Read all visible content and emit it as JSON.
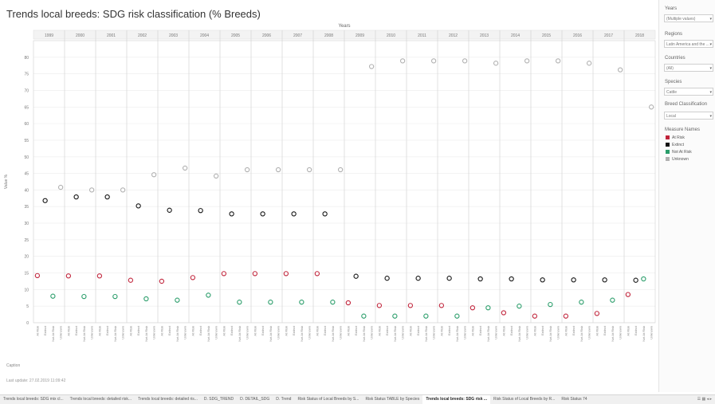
{
  "title": "Trends local breeds: SDG risk classification (% Breeds)",
  "chart_data": {
    "type": "scatter",
    "top_axis_label": "Years",
    "ylabel": "Value %",
    "ylim": [
      0,
      85
    ],
    "y_ticks": [
      0,
      5,
      10,
      15,
      20,
      25,
      30,
      35,
      40,
      45,
      50,
      55,
      60,
      65,
      70,
      75,
      80
    ],
    "grid": true,
    "years": [
      "1999",
      "2000",
      "2001",
      "2002",
      "2003",
      "2004",
      "2005",
      "2006",
      "2007",
      "2008",
      "2009",
      "2010",
      "2011",
      "2012",
      "2013",
      "2014",
      "2015",
      "2016",
      "2017",
      "2018"
    ],
    "status_categories": [
      "At Risk",
      "Extinct",
      "Not At Risk",
      "Unknown"
    ],
    "series": [
      {
        "name": "At Risk",
        "color": "#c0233a",
        "values": [
          14.2,
          14.1,
          14.1,
          12.8,
          12.5,
          13.6,
          14.8,
          14.8,
          14.8,
          14.8,
          6.0,
          5.2,
          5.2,
          5.2,
          4.5,
          3.0,
          2.0,
          2.0,
          2.8,
          8.5
        ]
      },
      {
        "name": "Extinct",
        "color": "#111111",
        "values": [
          36.8,
          37.9,
          37.9,
          35.2,
          33.9,
          33.8,
          32.8,
          32.8,
          32.8,
          32.8,
          14.0,
          13.4,
          13.4,
          13.4,
          13.2,
          13.2,
          12.9,
          12.9,
          12.9,
          12.8
        ]
      },
      {
        "name": "Not At Risk",
        "color": "#2a9d6a",
        "values": [
          8.0,
          7.9,
          7.9,
          7.2,
          6.8,
          8.3,
          6.2,
          6.2,
          6.2,
          6.2,
          2.0,
          2.0,
          2.0,
          2.0,
          4.5,
          5.0,
          5.5,
          6.2,
          6.8,
          13.2
        ]
      },
      {
        "name": "Unknown",
        "color": "#b0b0b0",
        "values": [
          40.8,
          40.0,
          40.0,
          44.6,
          46.6,
          44.2,
          46.1,
          46.1,
          46.1,
          46.1,
          77.2,
          78.9,
          78.9,
          78.9,
          78.2,
          78.9,
          78.9,
          78.2,
          76.2,
          65.0
        ]
      }
    ]
  },
  "sidebar": {
    "years_label": "Years",
    "years_value": "(Multiple values)",
    "regions_label": "Regions",
    "regions_value": "Latin America and the ...",
    "countries_label": "Countries",
    "countries_value": "(All)",
    "species_label": "Species",
    "species_value": "Cattle",
    "breed_class_label": "Breed Classification",
    "breed_class_value": "Local",
    "legend_title": "Measure Names",
    "legend": [
      {
        "label": "At Risk",
        "color": "#c0233a"
      },
      {
        "label": "Extinct",
        "color": "#111111"
      },
      {
        "label": "Not At Risk",
        "color": "#2a9d6a"
      },
      {
        "label": "Unknown",
        "color": "#b0b0b0"
      }
    ]
  },
  "caption_label": "Caption",
  "last_update": "Last update: 27.02.2019 11:09:42",
  "tabs": [
    "Trends local breeds: SDG mix cl...",
    "Trends local breeds: detailed risk...",
    "Trends local breeds: detailed ris...",
    "D. SDG_TREND",
    "D. DETAIL_SDG",
    "D. Trend",
    "Risk Status of Local Breeds by S...",
    "Risk Status TABLE by Species",
    "Trends local breeds: SDG risk ...",
    "Risk Status of Local Breeds by R...",
    "Risk Status 74"
  ],
  "active_tab_index": 8
}
